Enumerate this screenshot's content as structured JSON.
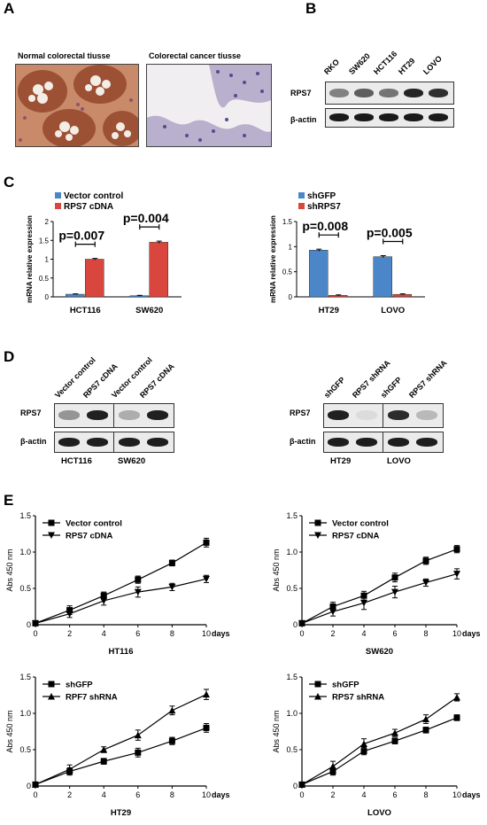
{
  "panels": {
    "a": "A",
    "b": "B",
    "c": "C",
    "d": "D",
    "e": "E"
  },
  "panel_a": {
    "normal_label": "Normal colorectal tiusse",
    "cancer_label": "Colorectal cancer tiusse"
  },
  "panel_b": {
    "lanes": [
      "RKO",
      "SW620",
      "HCT116",
      "HT29",
      "LOVO"
    ],
    "rows": [
      "RPS7",
      "β-actin"
    ],
    "rps7_intensity": [
      0.55,
      0.7,
      0.6,
      0.95,
      0.9
    ]
  },
  "panel_d": {
    "left": {
      "lanes": [
        "Vector control",
        "RPS7 cDNA",
        "Vector control",
        "RPS7 cDNA"
      ],
      "rows": [
        "RPS7",
        "β-actin"
      ],
      "groups": [
        "HCT116",
        "SW620"
      ],
      "rps7_intensity": [
        0.45,
        0.95,
        0.35,
        0.95
      ]
    },
    "right": {
      "lanes": [
        "shGFP",
        "RPS7 shRNA",
        "shGFP",
        "RPS7 shRNA"
      ],
      "rows": [
        "RPS7",
        "β-actin"
      ],
      "groups": [
        "HT29",
        "LOVO"
      ],
      "rps7_intensity": [
        0.95,
        0.15,
        0.9,
        0.3
      ]
    }
  },
  "chart_data": [
    {
      "id": "c-left",
      "type": "bar",
      "ylabel": "mRNA relative expression",
      "ylim": [
        0,
        2
      ],
      "yticks": [
        "0",
        "0.5",
        "1",
        "1.5",
        "2"
      ],
      "categories": [
        "HCT116",
        "SW620"
      ],
      "series": [
        {
          "name": "Vector control",
          "color": "#4a86c8",
          "values": [
            0.07,
            0.03
          ],
          "err": [
            0.01,
            0.01
          ]
        },
        {
          "name": "RPS7 cDNA",
          "color": "#d9463e",
          "values": [
            1.0,
            1.45
          ],
          "err": [
            0.02,
            0.03
          ]
        }
      ],
      "annotations": [
        "p=0.007",
        "p=0.004"
      ]
    },
    {
      "id": "c-right",
      "type": "bar",
      "ylabel": "mRNA relative expression",
      "ylim": [
        0,
        1.5
      ],
      "yticks": [
        "0",
        "0.5",
        "1",
        "1.5"
      ],
      "categories": [
        "HT29",
        "LOVO"
      ],
      "series": [
        {
          "name": "shGFP",
          "color": "#4a86c8",
          "values": [
            0.93,
            0.8
          ],
          "err": [
            0.02,
            0.02
          ]
        },
        {
          "name": "shRPS7",
          "color": "#d9463e",
          "values": [
            0.03,
            0.05
          ],
          "err": [
            0.01,
            0.01
          ]
        }
      ],
      "annotations": [
        "p=0.008",
        "p=0.005"
      ]
    },
    {
      "id": "e1",
      "type": "line",
      "xlabel": "HT116",
      "ylabel": "Abs 450 nm",
      "x_unit": "days",
      "ylim": [
        0,
        1.5
      ],
      "yticks": [
        "0",
        "0.5",
        "1.0",
        "1.5"
      ],
      "x": [
        0,
        2,
        4,
        6,
        8,
        10
      ],
      "xticks": [
        "0",
        "2",
        "4",
        "6",
        "8",
        "10"
      ],
      "series": [
        {
          "name": "Vector control",
          "marker": "square",
          "values": [
            0.02,
            0.2,
            0.4,
            0.62,
            0.85,
            1.13
          ],
          "err": [
            0.02,
            0.06,
            0.05,
            0.05,
            0.04,
            0.06
          ]
        },
        {
          "name": "RPS7 cDNA",
          "marker": "down",
          "values": [
            0.02,
            0.15,
            0.33,
            0.45,
            0.52,
            0.63
          ],
          "err": [
            0.02,
            0.05,
            0.06,
            0.07,
            0.05,
            0.05
          ]
        }
      ]
    },
    {
      "id": "e2",
      "type": "line",
      "xlabel": "SW620",
      "ylabel": "Abs 450 nm",
      "x_unit": "days",
      "ylim": [
        0,
        1.5
      ],
      "yticks": [
        "0",
        "0.5",
        "1.0",
        "1.5"
      ],
      "x": [
        0,
        2,
        4,
        6,
        8,
        10
      ],
      "xticks": [
        "0",
        "2",
        "4",
        "6",
        "8",
        "10"
      ],
      "series": [
        {
          "name": "Vector control",
          "marker": "square",
          "values": [
            0.02,
            0.25,
            0.4,
            0.65,
            0.88,
            1.04
          ],
          "err": [
            0.02,
            0.06,
            0.06,
            0.06,
            0.05,
            0.05
          ]
        },
        {
          "name": "RPS7 cDNA",
          "marker": "down",
          "values": [
            0.02,
            0.18,
            0.3,
            0.45,
            0.58,
            0.7
          ],
          "err": [
            0.02,
            0.06,
            0.09,
            0.08,
            0.05,
            0.07
          ]
        }
      ]
    },
    {
      "id": "e3",
      "type": "line",
      "xlabel": "HT29",
      "ylabel": "Abs 450 nm",
      "x_unit": "days",
      "ylim": [
        0,
        1.5
      ],
      "yticks": [
        "0",
        "0.5",
        "1.0",
        "1.5"
      ],
      "x": [
        0,
        2,
        4,
        6,
        8,
        10
      ],
      "xticks": [
        "0",
        "2",
        "4",
        "6",
        "8",
        "10"
      ],
      "series": [
        {
          "name": "shGFP",
          "marker": "square",
          "values": [
            0.02,
            0.2,
            0.34,
            0.46,
            0.62,
            0.8
          ],
          "err": [
            0.02,
            0.05,
            0.04,
            0.06,
            0.05,
            0.06
          ]
        },
        {
          "name": "RPF7 shRNA",
          "marker": "up",
          "values": [
            0.02,
            0.23,
            0.5,
            0.7,
            1.04,
            1.26
          ],
          "err": [
            0.02,
            0.06,
            0.04,
            0.07,
            0.06,
            0.07
          ]
        }
      ]
    },
    {
      "id": "e4",
      "type": "line",
      "xlabel": "LOVO",
      "ylabel": "Abs 450 nm",
      "x_unit": "days",
      "ylim": [
        0,
        1.5
      ],
      "yticks": [
        "0",
        "0.5",
        "1.0",
        "1.5"
      ],
      "x": [
        0,
        2,
        4,
        6,
        8,
        10
      ],
      "xticks": [
        "0",
        "2",
        "4",
        "6",
        "8",
        "10"
      ],
      "series": [
        {
          "name": "shGFP",
          "marker": "square",
          "values": [
            0.02,
            0.2,
            0.48,
            0.62,
            0.77,
            0.94
          ],
          "err": [
            0.02,
            0.05,
            0.05,
            0.04,
            0.04,
            0.04
          ]
        },
        {
          "name": "RPS7 shRNA",
          "marker": "up",
          "values": [
            0.02,
            0.27,
            0.58,
            0.73,
            0.92,
            1.22
          ],
          "err": [
            0.02,
            0.07,
            0.07,
            0.05,
            0.06,
            0.05
          ]
        }
      ]
    }
  ]
}
